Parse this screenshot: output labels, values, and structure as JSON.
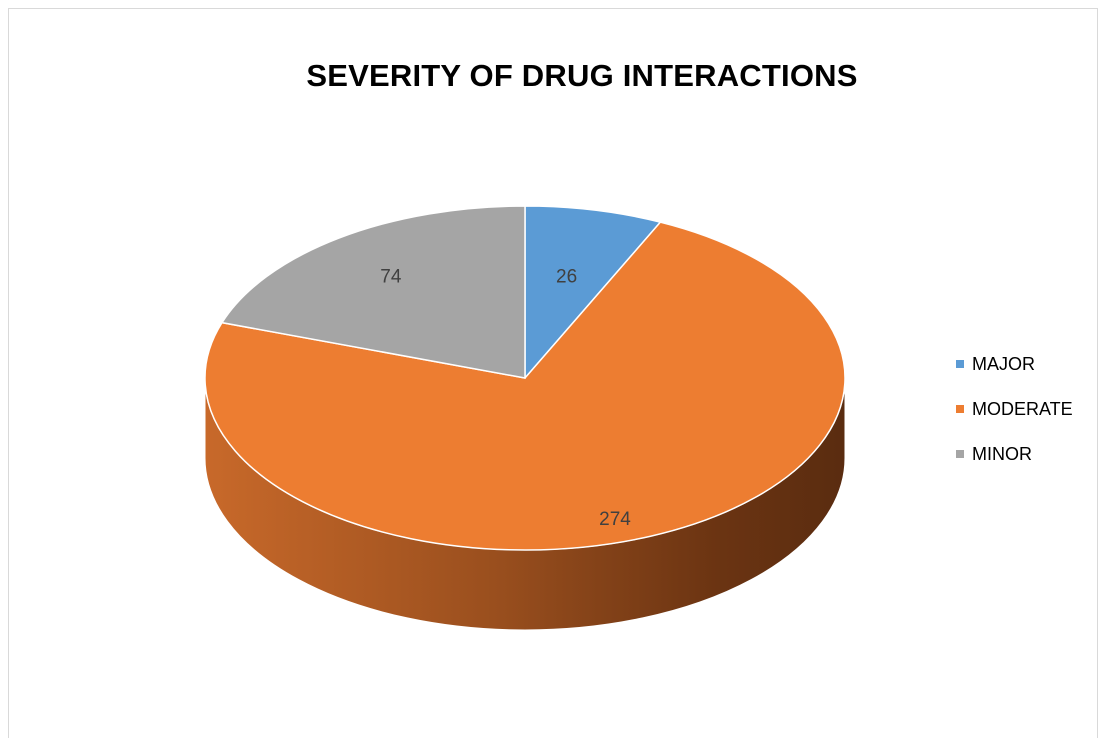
{
  "chart_data": {
    "type": "pie",
    "title": "SEVERITY OF DRUG INTERACTIONS",
    "categories": [
      "MAJOR",
      "MODERATE",
      "MINOR"
    ],
    "values": [
      26,
      274,
      74
    ],
    "colors": [
      "#5B9BD5",
      "#ED7D31",
      "#A5A5A5"
    ],
    "legend_position": "right",
    "style": "3d"
  }
}
